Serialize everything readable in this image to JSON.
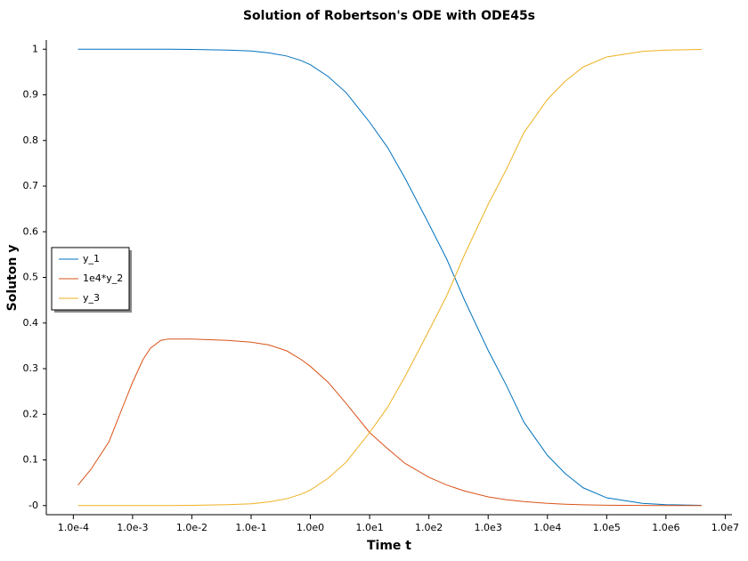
{
  "chart_data": {
    "type": "line",
    "title": "Solution of Robertson's ODE with ODE45s",
    "x_label": "Time t",
    "y_label": "Soluton y",
    "xscale": "log",
    "x": [
      0.00012,
      0.0002,
      0.0004,
      0.0007,
      0.001,
      0.0015,
      0.002,
      0.003,
      0.004,
      0.01,
      0.04,
      0.1,
      0.2,
      0.4,
      0.7,
      1,
      2,
      4,
      10,
      20,
      40,
      100,
      200,
      400,
      1000,
      2000,
      4000,
      10000,
      20000,
      40000,
      100000,
      400000,
      1000000,
      4000000
    ],
    "series": [
      {
        "name": "y_1",
        "color": "#0072bd",
        "values": [
          1,
          1,
          1,
          1,
          1,
          1,
          1,
          1,
          1,
          0.9996,
          0.998,
          0.996,
          0.992,
          0.985,
          0.975,
          0.966,
          0.94,
          0.905,
          0.84,
          0.785,
          0.716,
          0.617,
          0.54,
          0.45,
          0.34,
          0.265,
          0.183,
          0.11,
          0.07,
          0.039,
          0.017,
          0.005,
          0.002,
          0.0005
        ]
      },
      {
        "name": "1e4*y_2",
        "color": "#d95319",
        "values": [
          0.045,
          0.08,
          0.14,
          0.22,
          0.27,
          0.32,
          0.345,
          0.362,
          0.365,
          0.365,
          0.362,
          0.358,
          0.352,
          0.339,
          0.32,
          0.305,
          0.27,
          0.224,
          0.16,
          0.125,
          0.092,
          0.062,
          0.045,
          0.032,
          0.019,
          0.013,
          0.0089,
          0.005,
          0.003,
          0.0016,
          0.0008,
          0.0002,
          0.0001,
          0
        ]
      },
      {
        "name": "y_3",
        "color": "#edb120",
        "values": [
          0,
          0,
          0,
          0,
          0,
          0,
          0,
          0,
          0,
          0.0004,
          0.002,
          0.004,
          0.008,
          0.015,
          0.025,
          0.034,
          0.06,
          0.095,
          0.16,
          0.215,
          0.284,
          0.383,
          0.46,
          0.55,
          0.66,
          0.735,
          0.817,
          0.89,
          0.93,
          0.961,
          0.983,
          0.995,
          0.998,
          0.9995
        ]
      }
    ],
    "xlim": [
      3.5e-05,
      13000000
    ],
    "ylim": [
      -0.02,
      1.02
    ],
    "xticks": [
      {
        "value": 0.0001,
        "label": "1.0e-4"
      },
      {
        "value": 0.001,
        "label": "1.0e-3"
      },
      {
        "value": 0.01,
        "label": "1.0e-2"
      },
      {
        "value": 0.1,
        "label": "1.0e-1"
      },
      {
        "value": 1,
        "label": "1.0e0"
      },
      {
        "value": 10,
        "label": "1.0e1"
      },
      {
        "value": 100,
        "label": "1.0e2"
      },
      {
        "value": 1000,
        "label": "1.0e3"
      },
      {
        "value": 10000,
        "label": "1.0e4"
      },
      {
        "value": 100000,
        "label": "1.0e5"
      },
      {
        "value": 1000000,
        "label": "1.0e6"
      },
      {
        "value": 10000000,
        "label": "1.0e7"
      }
    ],
    "yticks": [
      {
        "value": 0,
        "label": "-0"
      },
      0.1,
      0.2,
      0.3,
      0.4,
      0.5,
      0.6,
      0.7,
      0.8,
      0.9,
      1
    ],
    "legend": "left",
    "grid": false
  }
}
